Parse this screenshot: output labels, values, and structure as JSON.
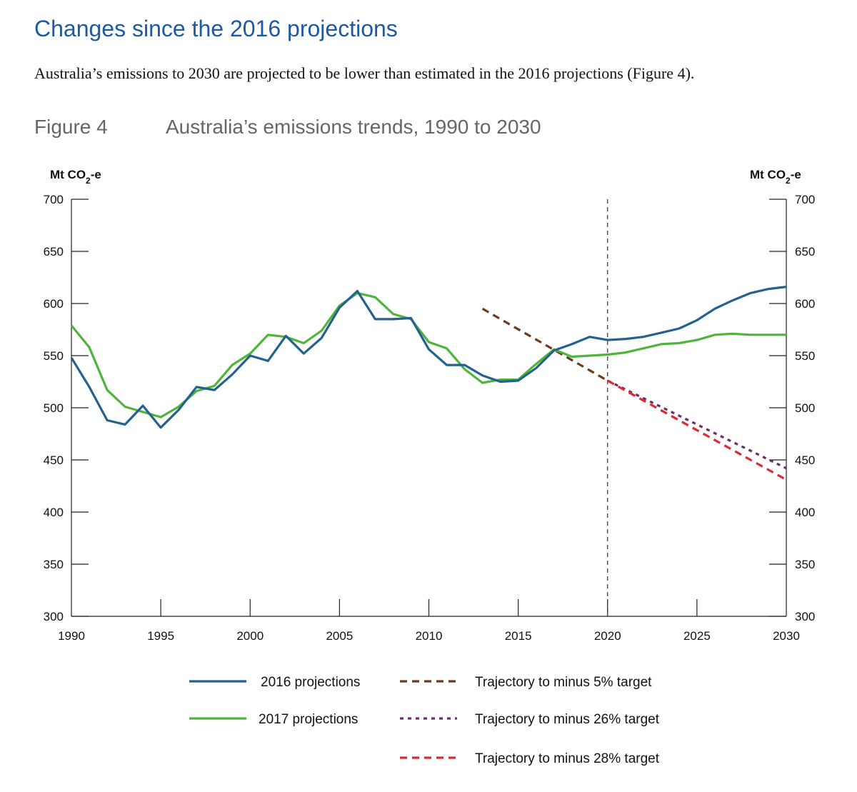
{
  "section_title": "Changes since the 2016 projections",
  "intro_text": "Australia’s emissions to 2030 are projected to be lower than estimated in the 2016 projections (Figure 4).",
  "figure": {
    "number": "Figure 4",
    "title": "Australia’s emissions trends, 1990 to 2030"
  },
  "chart_data": {
    "type": "line",
    "title": "Australia’s emissions trends, 1990 to 2030",
    "ylabel_left": "Mt CO2-e",
    "ylabel_right": "Mt CO2-e",
    "xlim": [
      1990,
      2030
    ],
    "ylim": [
      300,
      700
    ],
    "x_ticks": [
      1990,
      1995,
      2000,
      2005,
      2010,
      2015,
      2020,
      2025,
      2030
    ],
    "y_ticks": [
      300,
      350,
      400,
      450,
      500,
      550,
      600,
      650,
      700
    ],
    "reference_line_x": 2020,
    "grid": false,
    "legend_position": "bottom",
    "series": [
      {
        "name": "2016 projections",
        "color": "#23618f",
        "style": "solid",
        "x": [
          1990,
          1991,
          1992,
          1993,
          1994,
          1995,
          1996,
          1997,
          1998,
          1999,
          2000,
          2001,
          2002,
          2003,
          2004,
          2005,
          2006,
          2007,
          2008,
          2009,
          2010,
          2011,
          2012,
          2013,
          2014,
          2015,
          2016,
          2017,
          2018,
          2019,
          2020,
          2021,
          2022,
          2023,
          2024,
          2025,
          2026,
          2027,
          2028,
          2029,
          2030
        ],
        "values": [
          548,
          520,
          488,
          484,
          502,
          481,
          498,
          520,
          517,
          532,
          550,
          545,
          569,
          552,
          567,
          596,
          612,
          585,
          585,
          586,
          556,
          541,
          541,
          531,
          525,
          526,
          538,
          555,
          561,
          568,
          565,
          566,
          568,
          572,
          576,
          584,
          595,
          603,
          610,
          614,
          616
        ]
      },
      {
        "name": "2017 projections",
        "color": "#4fb43c",
        "style": "solid",
        "x": [
          1990,
          1991,
          1992,
          1993,
          1994,
          1995,
          1996,
          1997,
          1998,
          1999,
          2000,
          2001,
          2002,
          2003,
          2004,
          2005,
          2006,
          2007,
          2008,
          2009,
          2010,
          2011,
          2012,
          2013,
          2014,
          2015,
          2016,
          2017,
          2018,
          2019,
          2020,
          2021,
          2022,
          2023,
          2024,
          2025,
          2026,
          2027,
          2028,
          2029,
          2030
        ],
        "values": [
          579,
          558,
          517,
          501,
          496,
          491,
          501,
          516,
          521,
          541,
          552,
          570,
          568,
          562,
          574,
          598,
          610,
          606,
          590,
          585,
          563,
          557,
          537,
          524,
          527,
          527,
          542,
          556,
          549,
          550,
          551,
          553,
          557,
          561,
          562,
          565,
          570,
          571,
          570,
          570,
          570
        ]
      },
      {
        "name": "Trajectory to minus 5% target",
        "color": "#6e3b1e",
        "style": "dashed",
        "x": [
          2013,
          2020
        ],
        "values": [
          595,
          526
        ]
      },
      {
        "name": "Trajectory to minus 26% target",
        "color": "#6b2f6b",
        "style": "dotted",
        "x": [
          2020,
          2030
        ],
        "values": [
          526,
          442
        ]
      },
      {
        "name": "Trajectory to minus 28% target",
        "color": "#e02833",
        "style": "dashed",
        "x": [
          2020,
          2030
        ],
        "values": [
          526,
          431
        ]
      }
    ]
  }
}
